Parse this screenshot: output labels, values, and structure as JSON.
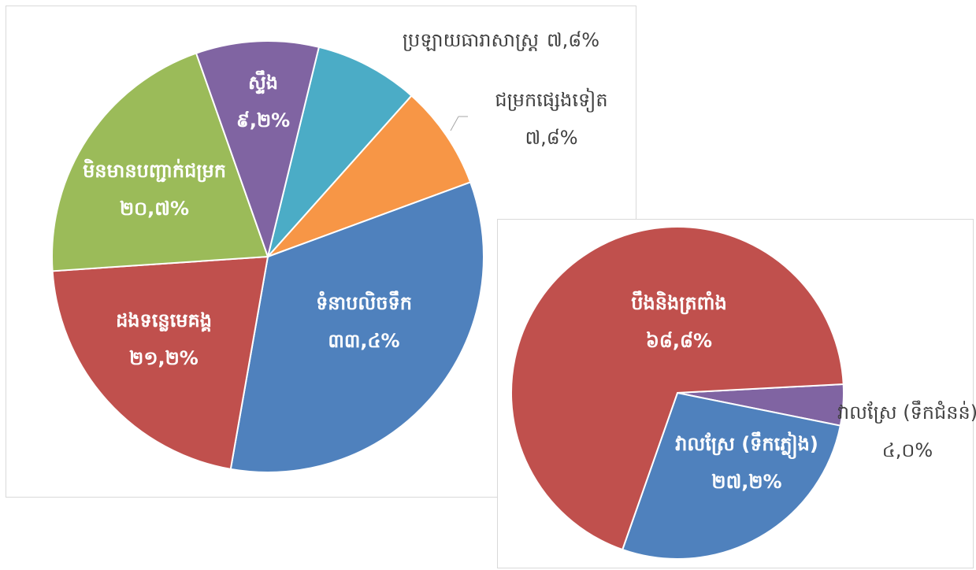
{
  "chart_data": [
    {
      "type": "pie",
      "categories": [
        "ប្រឡាយធារាសាស្ត្រ",
        "ជម្រកផ្សេងទៀត",
        "ទំនាបលិចទឹក",
        "ដងទន្លេមេគង្គ",
        "មិនមានបញ្ជាក់ជម្រក",
        "ស្ទឹង"
      ],
      "values": [
        7.8,
        7.8,
        33.4,
        21.2,
        20.7,
        9.2
      ],
      "value_labels": [
        "៧,៨%",
        "៧,៨%",
        "៣៣,៤%",
        "២១,២%",
        "២០,៧%",
        "៩,២%"
      ],
      "colors": [
        "#4bacc6",
        "#f79646",
        "#4f81bd",
        "#c0504d",
        "#9bbb59",
        "#8064a2"
      ]
    },
    {
      "type": "pie",
      "categories": [
        "វាលស្រែ (ទឹកជំនន់)",
        "វាលស្រែ (ទឹកភ្លៀង)",
        "បឹងនិងត្រពាំង"
      ],
      "values": [
        4.0,
        27.2,
        68.8
      ],
      "value_labels": [
        "៤,០%",
        "២៧,២%",
        "៦៨,៨%"
      ],
      "colors": [
        "#8064a2",
        "#4f81bd",
        "#c0504d"
      ]
    }
  ]
}
